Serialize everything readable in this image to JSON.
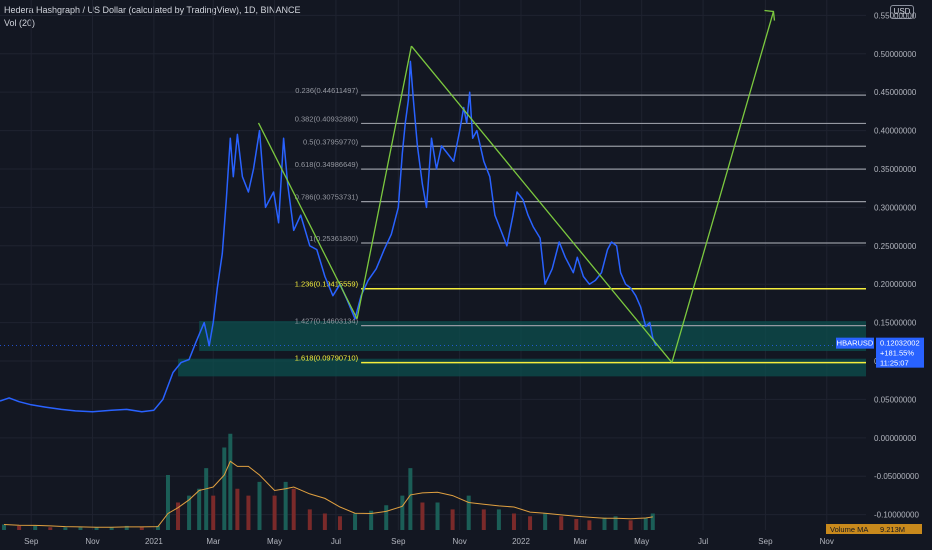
{
  "header": {
    "title": "Hedera Hashgraph / US Dollar (calculated by TradingView), 1D, BINANCE",
    "indicator": "Vol (20)",
    "currency": "USD"
  },
  "price_tag": {
    "symbol": "HBARUSD",
    "price": "0.12032002",
    "change": "+181.55%",
    "countdown": "11:25:07"
  },
  "volume_tag": {
    "label": "Volume MA",
    "value": "9.213M"
  },
  "colors": {
    "background": "#131722",
    "price_line": "#2962ff",
    "green": "#7cc93f",
    "fib_line": "#9598a1",
    "yellow": "#f5ee3c",
    "zone": "#0c4f4e",
    "up_volume": "#1b5e57",
    "down_volume": "#7a2a2a",
    "volume_ma": "#e0a040"
  },
  "chart_data": {
    "type": "line",
    "symbol": "HBARUSD",
    "timeframe": "1D",
    "y_axis": {
      "range": [
        -0.12,
        0.57
      ],
      "ticks": [
        "0.55000000",
        "0.50000000",
        "0.45000000",
        "0.40000000",
        "0.35000000",
        "0.30000000",
        "0.25000000",
        "0.20000000",
        "0.15000000",
        "0.10000000",
        "0.05000000",
        "0.00000000",
        "-0.05000000",
        "-0.10000000"
      ]
    },
    "x_axis": {
      "range": [
        "2020-08-01",
        "2022-12-10"
      ],
      "ticks": [
        {
          "label": "Sep",
          "date": "2020-09-01"
        },
        {
          "label": "Nov",
          "date": "2020-11-01"
        },
        {
          "label": "2021",
          "date": "2021-01-01"
        },
        {
          "label": "Mar",
          "date": "2021-03-01"
        },
        {
          "label": "May",
          "date": "2021-05-01"
        },
        {
          "label": "Jul",
          "date": "2021-07-01"
        },
        {
          "label": "Sep",
          "date": "2021-09-01"
        },
        {
          "label": "Nov",
          "date": "2021-11-01"
        },
        {
          "label": "2022",
          "date": "2022-01-01"
        },
        {
          "label": "Mar",
          "date": "2022-03-01"
        },
        {
          "label": "May",
          "date": "2022-05-01"
        },
        {
          "label": "Jul",
          "date": "2022-07-01"
        },
        {
          "label": "Sep",
          "date": "2022-09-01"
        },
        {
          "label": "Nov",
          "date": "2022-11-01"
        }
      ]
    },
    "series": [
      {
        "values": [
          [
            "2020-08-01",
            0.048
          ],
          [
            "2020-08-10",
            0.052
          ],
          [
            "2020-08-20",
            0.047
          ],
          [
            "2020-09-01",
            0.043
          ],
          [
            "2020-09-15",
            0.04
          ],
          [
            "2020-10-01",
            0.037
          ],
          [
            "2020-10-15",
            0.035
          ],
          [
            "2020-11-01",
            0.034
          ],
          [
            "2020-11-20",
            0.036
          ],
          [
            "2020-12-05",
            0.037
          ],
          [
            "2020-12-20",
            0.034
          ],
          [
            "2021-01-01",
            0.036
          ],
          [
            "2021-01-10",
            0.05
          ],
          [
            "2021-01-20",
            0.085
          ],
          [
            "2021-01-28",
            0.098
          ],
          [
            "2021-02-05",
            0.102
          ],
          [
            "2021-02-12",
            0.125
          ],
          [
            "2021-02-20",
            0.15
          ],
          [
            "2021-02-25",
            0.12
          ],
          [
            "2021-03-01",
            0.15
          ],
          [
            "2021-03-05",
            0.195
          ],
          [
            "2021-03-10",
            0.24
          ],
          [
            "2021-03-14",
            0.31
          ],
          [
            "2021-03-18",
            0.39
          ],
          [
            "2021-03-21",
            0.34
          ],
          [
            "2021-03-25",
            0.395
          ],
          [
            "2021-03-30",
            0.34
          ],
          [
            "2021-04-05",
            0.32
          ],
          [
            "2021-04-10",
            0.35
          ],
          [
            "2021-04-16",
            0.4
          ],
          [
            "2021-04-22",
            0.3
          ],
          [
            "2021-04-30",
            0.32
          ],
          [
            "2021-05-05",
            0.28
          ],
          [
            "2021-05-10",
            0.39
          ],
          [
            "2021-05-14",
            0.33
          ],
          [
            "2021-05-20",
            0.27
          ],
          [
            "2021-05-27",
            0.29
          ],
          [
            "2021-06-05",
            0.25
          ],
          [
            "2021-06-12",
            0.245
          ],
          [
            "2021-06-20",
            0.21
          ],
          [
            "2021-06-28",
            0.185
          ],
          [
            "2021-07-05",
            0.2
          ],
          [
            "2021-07-12",
            0.18
          ],
          [
            "2021-07-20",
            0.155
          ],
          [
            "2021-07-26",
            0.185
          ],
          [
            "2021-08-02",
            0.205
          ],
          [
            "2021-08-10",
            0.22
          ],
          [
            "2021-08-18",
            0.245
          ],
          [
            "2021-08-25",
            0.265
          ],
          [
            "2021-09-01",
            0.3
          ],
          [
            "2021-09-05",
            0.37
          ],
          [
            "2021-09-08",
            0.41
          ],
          [
            "2021-09-11",
            0.44
          ],
          [
            "2021-09-13",
            0.49
          ],
          [
            "2021-09-16",
            0.44
          ],
          [
            "2021-09-20",
            0.38
          ],
          [
            "2021-09-25",
            0.33
          ],
          [
            "2021-09-29",
            0.3
          ],
          [
            "2021-10-04",
            0.39
          ],
          [
            "2021-10-09",
            0.35
          ],
          [
            "2021-10-14",
            0.38
          ],
          [
            "2021-10-20",
            0.37
          ],
          [
            "2021-10-26",
            0.36
          ],
          [
            "2021-11-01",
            0.4
          ],
          [
            "2021-11-05",
            0.43
          ],
          [
            "2021-11-08",
            0.41
          ],
          [
            "2021-11-11",
            0.45
          ],
          [
            "2021-11-14",
            0.39
          ],
          [
            "2021-11-18",
            0.4
          ],
          [
            "2021-11-25",
            0.36
          ],
          [
            "2021-12-01",
            0.34
          ],
          [
            "2021-12-06",
            0.29
          ],
          [
            "2021-12-12",
            0.27
          ],
          [
            "2021-12-18",
            0.25
          ],
          [
            "2021-12-24",
            0.29
          ],
          [
            "2021-12-28",
            0.32
          ],
          [
            "2022-01-03",
            0.31
          ],
          [
            "2022-01-08",
            0.29
          ],
          [
            "2022-01-13",
            0.275
          ],
          [
            "2022-01-20",
            0.26
          ],
          [
            "2022-01-25",
            0.2
          ],
          [
            "2022-02-01",
            0.22
          ],
          [
            "2022-02-08",
            0.255
          ],
          [
            "2022-02-14",
            0.235
          ],
          [
            "2022-02-22",
            0.215
          ],
          [
            "2022-02-26",
            0.235
          ],
          [
            "2022-03-04",
            0.21
          ],
          [
            "2022-03-10",
            0.2
          ],
          [
            "2022-03-16",
            0.205
          ],
          [
            "2022-03-22",
            0.215
          ],
          [
            "2022-03-28",
            0.245
          ],
          [
            "2022-04-01",
            0.255
          ],
          [
            "2022-04-06",
            0.25
          ],
          [
            "2022-04-10",
            0.215
          ],
          [
            "2022-04-15",
            0.2
          ],
          [
            "2022-04-20",
            0.195
          ],
          [
            "2022-04-25",
            0.185
          ],
          [
            "2022-04-30",
            0.17
          ],
          [
            "2022-05-05",
            0.145
          ],
          [
            "2022-05-09",
            0.15
          ],
          [
            "2022-05-12",
            0.13
          ],
          [
            "2022-05-15",
            0.12
          ]
        ]
      }
    ],
    "fibonacci_levels": [
      {
        "label": "0.236(0.44611497)",
        "value": 0.44611497
      },
      {
        "label": "0.382(0.40932890)",
        "value": 0.4093289
      },
      {
        "label": "0.5(0.37959770)",
        "value": 0.3795977
      },
      {
        "label": "0.618(0.34986649)",
        "value": 0.34986649
      },
      {
        "label": "0.786(0.30753731)",
        "value": 0.30753731
      },
      {
        "label": "1(0.25361800)",
        "value": 0.253618
      },
      {
        "label": "1.236(0.19415559)",
        "value": 0.19415559,
        "highlight": true
      },
      {
        "label": "1.427(0.14603134)",
        "value": 0.14603134
      },
      {
        "label": "1.618(0.09790710)",
        "value": 0.0979071,
        "highlight": true
      }
    ],
    "zones": [
      {
        "from": "2021-02-15",
        "to": "2022-12-10",
        "low": 0.113,
        "high": 0.152
      },
      {
        "from": "2021-01-25",
        "to": "2022-12-10",
        "low": 0.08,
        "high": 0.103
      }
    ],
    "annotations": {
      "pattern_lines": [
        [
          [
            "2021-04-15",
            0.41
          ],
          [
            "2021-07-22",
            0.155
          ]
        ],
        [
          [
            "2021-07-22",
            0.155
          ],
          [
            "2021-09-14",
            0.51
          ]
        ],
        [
          [
            "2021-09-14",
            0.51
          ],
          [
            "2022-05-31",
            0.098
          ]
        ],
        [
          [
            "2022-05-31",
            0.098
          ],
          [
            "2022-09-09",
            0.555
          ]
        ]
      ]
    },
    "volume": {
      "label": "Volume MA",
      "ma_last": "9.213M",
      "note": "histogram of daily volume with moving-average line (values in millions)",
      "values": [
        [
          "2020-08-05",
          4
        ],
        [
          "2020-08-20",
          3
        ],
        [
          "2020-09-05",
          3
        ],
        [
          "2020-09-20",
          2
        ],
        [
          "2020-10-05",
          2
        ],
        [
          "2020-10-20",
          2
        ],
        [
          "2020-11-05",
          2
        ],
        [
          "2020-11-20",
          2
        ],
        [
          "2020-12-05",
          3
        ],
        [
          "2020-12-20",
          2
        ],
        [
          "2021-01-05",
          3
        ],
        [
          "2021-01-15",
          40
        ],
        [
          "2021-01-25",
          20
        ],
        [
          "2021-02-05",
          25
        ],
        [
          "2021-02-15",
          30
        ],
        [
          "2021-02-22",
          45
        ],
        [
          "2021-03-01",
          25
        ],
        [
          "2021-03-12",
          60
        ],
        [
          "2021-03-18",
          70
        ],
        [
          "2021-03-25",
          30
        ],
        [
          "2021-04-05",
          25
        ],
        [
          "2021-04-16",
          35
        ],
        [
          "2021-05-01",
          25
        ],
        [
          "2021-05-12",
          35
        ],
        [
          "2021-05-20",
          30
        ],
        [
          "2021-06-05",
          15
        ],
        [
          "2021-06-20",
          12
        ],
        [
          "2021-07-05",
          10
        ],
        [
          "2021-07-20",
          12
        ],
        [
          "2021-08-05",
          14
        ],
        [
          "2021-08-20",
          18
        ],
        [
          "2021-09-05",
          25
        ],
        [
          "2021-09-13",
          45
        ],
        [
          "2021-09-25",
          20
        ],
        [
          "2021-10-10",
          20
        ],
        [
          "2021-10-25",
          15
        ],
        [
          "2021-11-10",
          25
        ],
        [
          "2021-11-25",
          15
        ],
        [
          "2021-12-10",
          15
        ],
        [
          "2021-12-25",
          12
        ],
        [
          "2022-01-10",
          10
        ],
        [
          "2022-01-25",
          12
        ],
        [
          "2022-02-10",
          10
        ],
        [
          "2022-02-25",
          8
        ],
        [
          "2022-03-10",
          7
        ],
        [
          "2022-03-25",
          9
        ],
        [
          "2022-04-05",
          10
        ],
        [
          "2022-04-20",
          7
        ],
        [
          "2022-05-05",
          9
        ],
        [
          "2022-05-12",
          12
        ]
      ]
    }
  }
}
